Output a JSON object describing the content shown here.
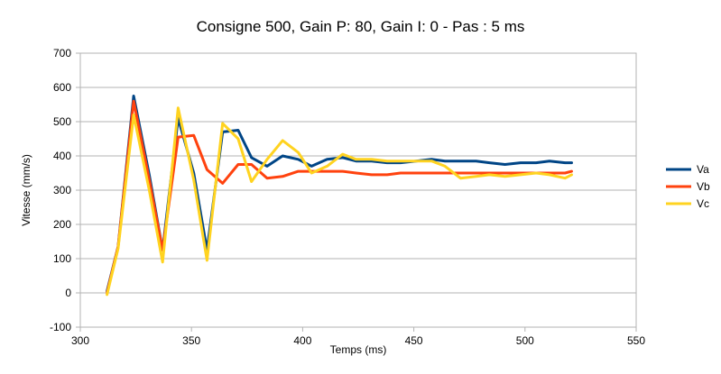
{
  "chart_data": {
    "type": "line",
    "title": "Consigne 500, Gain P: 80, Gain I: 0 - Pas :  5 ms",
    "xlabel": "Temps (ms)",
    "ylabel": "Vitesse (mm/s)",
    "xlim": [
      300,
      550
    ],
    "ylim": [
      -100,
      700
    ],
    "xticks": [
      300,
      350,
      400,
      450,
      500,
      550
    ],
    "yticks": [
      -100,
      0,
      100,
      200,
      300,
      400,
      500,
      600,
      700
    ],
    "xtick_labels": [
      "300",
      "350",
      "400",
      "450",
      "500",
      "550"
    ],
    "ytick_labels": [
      "-100",
      "0",
      "100",
      "200",
      "300",
      "400",
      "500",
      "600",
      "700"
    ],
    "grid": "horizontal",
    "legend_position": "right",
    "series": [
      {
        "name": "Va",
        "color": "#004586",
        "x": [
          312,
          317,
          324,
          331,
          337,
          344,
          351,
          357,
          364,
          371,
          377,
          384,
          391,
          398,
          404,
          411,
          418,
          424,
          431,
          438,
          444,
          451,
          458,
          464,
          471,
          478,
          484,
          491,
          498,
          505,
          511,
          518,
          521
        ],
        "y": [
          5,
          135,
          575,
          345,
          125,
          510,
          350,
          125,
          470,
          475,
          395,
          370,
          400,
          390,
          370,
          390,
          395,
          385,
          385,
          380,
          380,
          385,
          390,
          385,
          385,
          385,
          380,
          375,
          380,
          380,
          385,
          380,
          380
        ]
      },
      {
        "name": "Vb",
        "color": "#ff420e",
        "x": [
          312,
          317,
          324,
          331,
          337,
          344,
          351,
          357,
          364,
          371,
          377,
          384,
          391,
          398,
          404,
          411,
          418,
          424,
          431,
          438,
          444,
          451,
          458,
          464,
          471,
          478,
          484,
          491,
          498,
          505,
          511,
          518,
          521
        ],
        "y": [
          0,
          135,
          560,
          330,
          125,
          455,
          460,
          360,
          320,
          375,
          375,
          335,
          340,
          355,
          355,
          355,
          355,
          350,
          345,
          345,
          350,
          350,
          350,
          350,
          350,
          350,
          350,
          350,
          350,
          350,
          350,
          350,
          355
        ]
      },
      {
        "name": "Vc",
        "color": "#ffd320",
        "x": [
          312,
          317,
          324,
          331,
          337,
          344,
          351,
          357,
          364,
          371,
          377,
          384,
          391,
          398,
          404,
          411,
          418,
          424,
          431,
          438,
          444,
          451,
          458,
          464,
          471,
          478,
          484,
          491,
          498,
          505,
          511,
          518,
          521
        ],
        "y": [
          -5,
          130,
          520,
          300,
          90,
          540,
          330,
          95,
          495,
          450,
          325,
          390,
          445,
          410,
          350,
          370,
          405,
          390,
          390,
          385,
          385,
          385,
          385,
          370,
          335,
          340,
          345,
          340,
          345,
          350,
          345,
          335,
          345
        ]
      }
    ]
  }
}
